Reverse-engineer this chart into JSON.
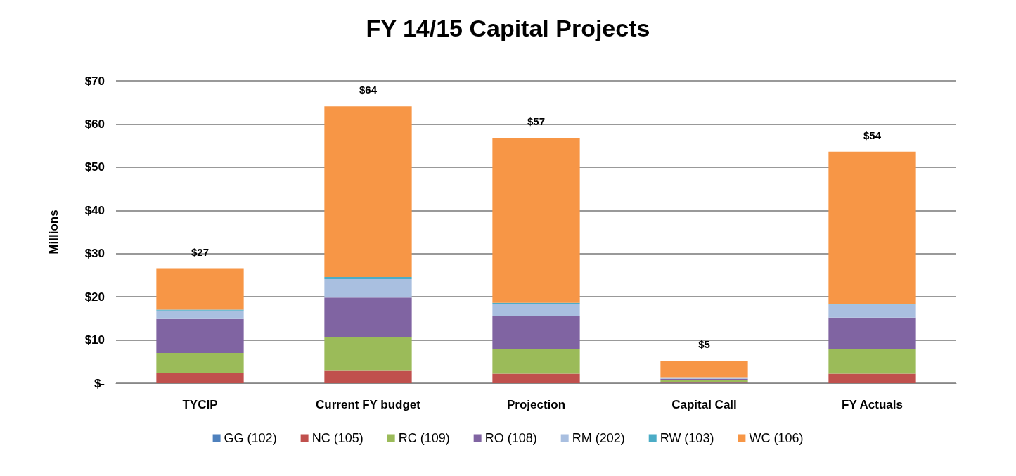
{
  "chart_data": {
    "type": "bar",
    "title": "FY 14/15 Capital Projects",
    "ylabel": "Millions",
    "stacked": true,
    "categories": [
      "TYCIP",
      "Current FY budget",
      "Projection",
      "Capital Call",
      "FY Actuals"
    ],
    "series": [
      {
        "name": "GG (102)",
        "color": "#4f81bd",
        "values": [
          null,
          null,
          null,
          0.1,
          null
        ]
      },
      {
        "name": "NC (105)",
        "color": "#c0504d",
        "values": [
          2.3,
          3.0,
          2.2,
          0.1,
          2.2
        ]
      },
      {
        "name": "RC (109)",
        "color": "#9bbb59",
        "values": [
          4.7,
          7.7,
          5.7,
          0.5,
          5.6
        ]
      },
      {
        "name": "RO (108)",
        "color": "#8064a2",
        "values": [
          8.0,
          9.1,
          7.6,
          0.3,
          7.4
        ]
      },
      {
        "name": "RM (202)",
        "color": "#a9bfe0",
        "values": [
          1.8,
          4.3,
          2.9,
          0.4,
          3.0
        ]
      },
      {
        "name": "RW (103)",
        "color": "#4bacc6",
        "values": [
          0.2,
          0.5,
          0.2,
          null,
          0.2
        ]
      },
      {
        "name": "WC (106)",
        "color": "#f79646",
        "values": [
          9.6,
          39.5,
          38.2,
          3.8,
          35.2
        ]
      }
    ],
    "totals": [
      "$27",
      "$64",
      "$57",
      "$5",
      "$54"
    ],
    "ylim": [
      0,
      70
    ],
    "yticks": [
      {
        "value": 0,
        "label": "$-"
      },
      {
        "value": 10,
        "label": "$10"
      },
      {
        "value": 20,
        "label": "$20"
      },
      {
        "value": 30,
        "label": "$30"
      },
      {
        "value": 40,
        "label": "$40"
      },
      {
        "value": 50,
        "label": "$50"
      },
      {
        "value": 60,
        "label": "$60"
      },
      {
        "value": 70,
        "label": "$70"
      }
    ],
    "grid": "y",
    "legend": "bottom"
  }
}
